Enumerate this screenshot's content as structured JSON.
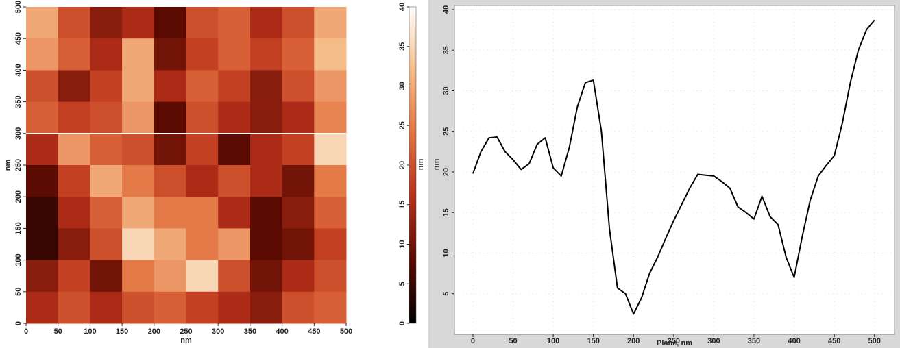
{
  "chart_data": [
    {
      "type": "heatmap",
      "xlabel": "nm",
      "ylabel": "nm",
      "xlim": [
        0,
        500
      ],
      "ylim": [
        0,
        500
      ],
      "xticks": [
        0,
        50,
        100,
        150,
        200,
        250,
        300,
        350,
        400,
        450,
        500
      ],
      "yticks": [
        0,
        50,
        100,
        150,
        200,
        250,
        300,
        350,
        400,
        450,
        500
      ],
      "values": [
        [
          30,
          20,
          12,
          15,
          8,
          20,
          22,
          15,
          20,
          30
        ],
        [
          28,
          22,
          15,
          30,
          10,
          18,
          22,
          18,
          22,
          32
        ],
        [
          20,
          12,
          18,
          30,
          15,
          22,
          18,
          12,
          20,
          28
        ],
        [
          22,
          18,
          20,
          28,
          8,
          20,
          15,
          12,
          15,
          26
        ],
        [
          15,
          28,
          22,
          20,
          10,
          18,
          8,
          15,
          18,
          35
        ],
        [
          8,
          18,
          30,
          25,
          20,
          15,
          20,
          15,
          10,
          25
        ],
        [
          5,
          15,
          22,
          30,
          25,
          25,
          15,
          8,
          12,
          22
        ],
        [
          5,
          12,
          20,
          35,
          30,
          25,
          28,
          8,
          10,
          18
        ],
        [
          12,
          18,
          10,
          25,
          28,
          35,
          20,
          10,
          15,
          20
        ],
        [
          15,
          20,
          15,
          20,
          22,
          18,
          15,
          12,
          20,
          22
        ]
      ],
      "colormap": [
        "#000000",
        "#5a0a00",
        "#b8301a",
        "#e2703f",
        "#f4bc88",
        "#ffffff"
      ],
      "profile_y": 300,
      "profile_color": "#ffffff",
      "colorbar": {
        "label": "nm",
        "lim": [
          0,
          40
        ],
        "ticks": [
          0,
          5,
          10,
          15,
          20,
          25,
          30,
          35,
          40
        ]
      }
    },
    {
      "type": "line",
      "xlabel": "Plane, nm",
      "ylabel": "nm",
      "color": "#000000",
      "xlim": [
        -23,
        525
      ],
      "ylim": [
        0,
        40.5
      ],
      "xticks": [
        0,
        50,
        100,
        150,
        200,
        250,
        300,
        350,
        400,
        450,
        500
      ],
      "yticks": [
        5,
        10,
        15,
        20,
        25,
        30,
        35,
        40
      ],
      "grid": true,
      "x": [
        0,
        10,
        20,
        30,
        40,
        50,
        60,
        70,
        80,
        90,
        100,
        110,
        120,
        130,
        140,
        150,
        160,
        170,
        180,
        190,
        200,
        210,
        220,
        230,
        240,
        250,
        260,
        270,
        280,
        290,
        300,
        310,
        320,
        330,
        340,
        350,
        360,
        370,
        380,
        390,
        400,
        410,
        420,
        430,
        440,
        450,
        460,
        470,
        480,
        490,
        500
      ],
      "values": [
        19.8,
        22.5,
        24.2,
        24.3,
        22.5,
        21.5,
        20.3,
        21,
        23.4,
        24.2,
        20.5,
        19.5,
        23,
        28,
        31,
        31.3,
        25,
        13,
        5.7,
        5,
        2.5,
        4.5,
        7.5,
        9.5,
        11.8,
        14,
        16,
        18,
        19.7,
        19.6,
        19.5,
        18.8,
        18,
        15.7,
        15,
        14.2,
        17,
        14.5,
        13.5,
        9.5,
        7,
        12,
        16.5,
        19.5,
        20.8,
        22,
        26,
        31,
        35,
        37.5,
        38.7
      ]
    }
  ]
}
